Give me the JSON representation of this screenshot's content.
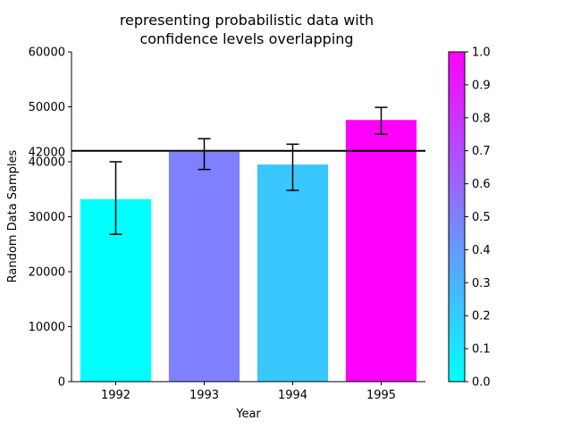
{
  "chart_data": {
    "type": "bar",
    "title_lines": [
      "representing probabilistic data with",
      "confidence levels overlapping"
    ],
    "xlabel": "Year",
    "ylabel": "Random Data Samples",
    "categories": [
      "1992",
      "1993",
      "1994",
      "1995"
    ],
    "values": [
      33200,
      41800,
      39500,
      47600
    ],
    "error_low": [
      26800,
      38600,
      34800,
      45000
    ],
    "error_high": [
      40000,
      44200,
      43200,
      49900
    ],
    "bar_colors": [
      "#00ffff",
      "#7f80ff",
      "#38c7ff",
      "#ff00ff"
    ],
    "ylim": [
      0,
      60000
    ],
    "yticks": [
      0,
      10000,
      20000,
      30000,
      40000,
      50000,
      60000
    ],
    "ytick_labels": [
      "0",
      "10000",
      "20000",
      "30000",
      "40000",
      "50000",
      "60000"
    ],
    "reference_line": {
      "value": 42000,
      "label": "42000",
      "color": "#000000"
    },
    "colorbar": {
      "min": 0.0,
      "max": 1.0,
      "colormap": "cool",
      "color_start": "#00ffff",
      "color_end": "#ff00ff",
      "ticks": [
        0.0,
        0.1,
        0.2,
        0.3,
        0.4,
        0.5,
        0.6,
        0.7,
        0.8,
        0.9,
        1.0
      ],
      "tick_labels": [
        "0.0",
        "0.1",
        "0.2",
        "0.3",
        "0.4",
        "0.5",
        "0.6",
        "0.7",
        "0.8",
        "0.9",
        "1.0"
      ]
    },
    "grid": false,
    "legend": "none"
  }
}
